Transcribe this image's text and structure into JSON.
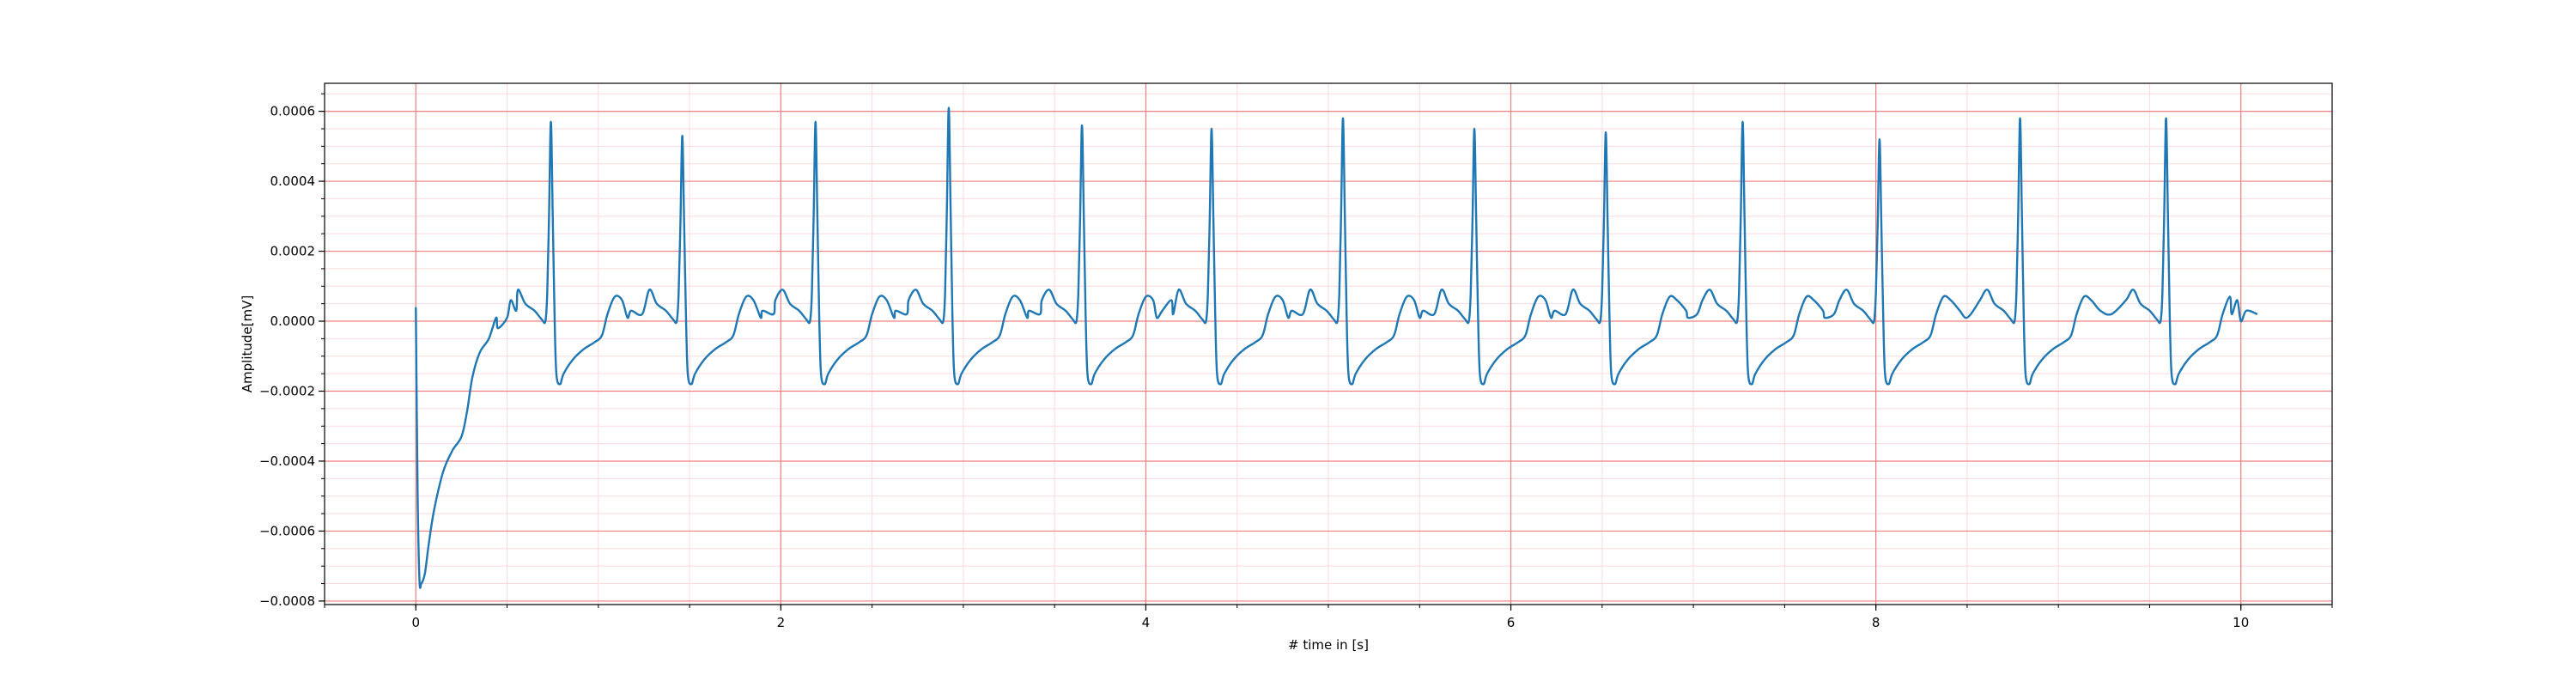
{
  "chart_data": {
    "type": "line",
    "title": "",
    "xlabel": "# time in [s]",
    "ylabel": "Amplitude[mV]",
    "xlim": [
      -0.5,
      10.5
    ],
    "ylim": [
      -0.00081,
      0.00068
    ],
    "x_ticks": [
      0,
      2,
      4,
      6,
      8,
      10
    ],
    "x_tick_labels": [
      "0",
      "2",
      "4",
      "6",
      "8",
      "10"
    ],
    "y_ticks": [
      -0.0008,
      -0.0006,
      -0.0004,
      -0.0002,
      0.0,
      0.0002,
      0.0004,
      0.0006
    ],
    "y_tick_labels": [
      "−0.0008",
      "−0.0006",
      "−0.0004",
      "−0.0002",
      "0.0000",
      "0.0002",
      "0.0004",
      "0.0006"
    ],
    "grid": {
      "major": true,
      "minor": true,
      "major_color": "#f08080",
      "minor_color": "#fadadd",
      "x_minor_step": 0.5,
      "y_minor_step": 5e-05
    },
    "line_color": "#1f77b4",
    "series": [
      {
        "sampling_interval_s": 0.01,
        "initial": [
          [
            0.0,
            4e-05
          ],
          [
            0.01,
            -0.0005
          ],
          [
            0.02,
            -0.00074
          ],
          [
            0.03,
            -0.00075
          ],
          [
            0.05,
            -0.00072
          ],
          [
            0.07,
            -0.00064
          ],
          [
            0.1,
            -0.00054
          ],
          [
            0.15,
            -0.00043
          ],
          [
            0.2,
            -0.00037
          ],
          [
            0.25,
            -0.00033
          ],
          [
            0.28,
            -0.00026
          ],
          [
            0.31,
            -0.00016
          ],
          [
            0.35,
            -9e-05
          ],
          [
            0.4,
            -5e-05
          ],
          [
            0.45,
            -2e-05
          ],
          [
            0.5,
            1e-05
          ],
          [
            0.55,
            3e-05
          ]
        ],
        "beat_template": [
          [
            -0.3,
            1e-05
          ],
          [
            -0.22,
            6e-05
          ],
          [
            -0.18,
            9e-05
          ],
          [
            -0.14,
            5e-05
          ],
          [
            -0.09,
            3e-05
          ],
          [
            -0.05,
            5e-06
          ],
          [
            -0.03,
            0.0
          ],
          [
            -0.02,
            8e-05
          ],
          [
            -0.01,
            0.0003
          ],
          [
            0.0,
            0.00056
          ],
          [
            0.01,
            0.0003
          ],
          [
            0.02,
            2e-05
          ],
          [
            0.03,
            -0.00015
          ],
          [
            0.05,
            -0.00018
          ],
          [
            0.07,
            -0.00015
          ],
          [
            0.12,
            -0.00011
          ],
          [
            0.18,
            -8e-05
          ],
          [
            0.24,
            -6e-05
          ],
          [
            0.28,
            -4e-05
          ],
          [
            0.31,
            2e-05
          ],
          [
            0.35,
            7e-05
          ],
          [
            0.39,
            6e-05
          ],
          [
            0.44,
            3e-05
          ],
          [
            0.5,
            2e-05
          ]
        ],
        "beats": [
          {
            "t": 0.74,
            "r": 0.00057
          },
          {
            "t": 1.46,
            "r": 0.00053
          },
          {
            "t": 2.19,
            "r": 0.00057
          },
          {
            "t": 2.92,
            "r": 0.00061
          },
          {
            "t": 3.65,
            "r": 0.00056
          },
          {
            "t": 4.36,
            "r": 0.00055
          },
          {
            "t": 5.08,
            "r": 0.00058
          },
          {
            "t": 5.8,
            "r": 0.00055
          },
          {
            "t": 6.52,
            "r": 0.00054
          },
          {
            "t": 7.27,
            "r": 0.00057
          },
          {
            "t": 8.02,
            "r": 0.00052
          },
          {
            "t": 8.79,
            "r": 0.00058
          },
          {
            "t": 9.59,
            "r": 0.00058
          }
        ],
        "tail": [
          [
            9.9,
            4e-05
          ],
          [
            9.95,
            2e-05
          ],
          [
            10.0,
            0.0
          ]
        ]
      }
    ]
  }
}
